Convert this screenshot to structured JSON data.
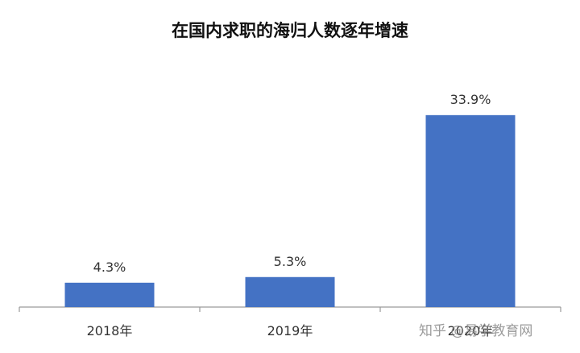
{
  "chart_data": {
    "type": "bar",
    "title": "在国内求职的海归人数逐年增速",
    "categories": [
      "2018年",
      "2019年",
      "2020年"
    ],
    "values": [
      4.3,
      5.3,
      33.9
    ],
    "value_labels": [
      "4.3%",
      "5.3%",
      "33.9%"
    ],
    "ylim": [
      0,
      40
    ],
    "grid": false,
    "legend": "none",
    "bar_color": "#4472C4"
  },
  "watermark": "知乎 @易学教育网"
}
